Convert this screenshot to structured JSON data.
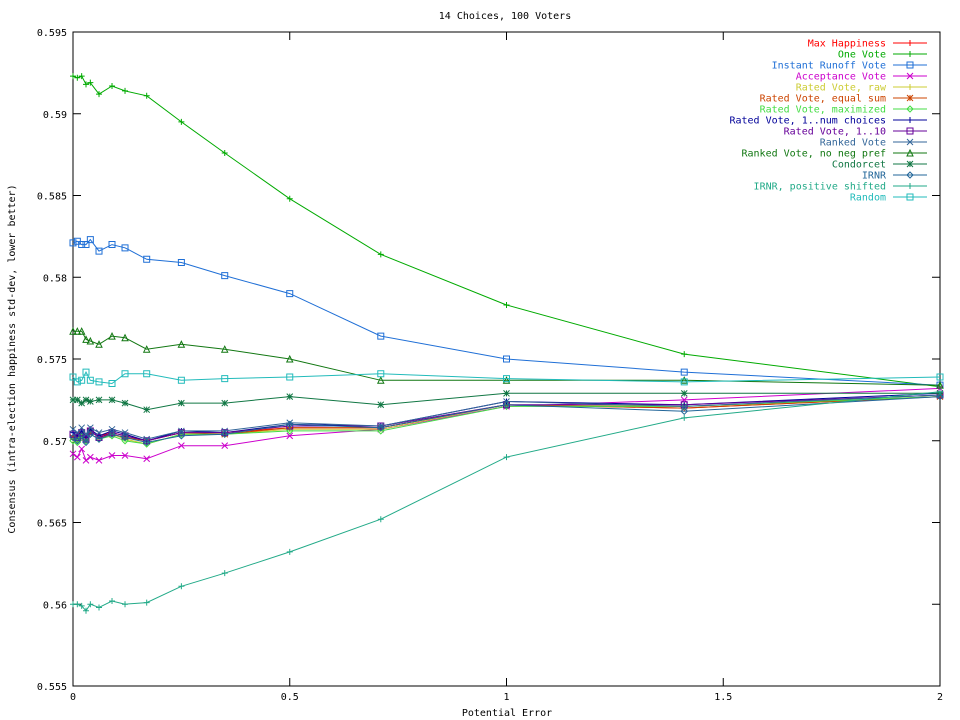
{
  "chart_data": {
    "type": "line",
    "title": "14 Choices, 100 Voters",
    "xlabel": "Potential Error",
    "ylabel": "Consensus (intra-election happiness std-dev, lower better)",
    "xlim": [
      0,
      2
    ],
    "ylim": [
      0.555,
      0.595
    ],
    "x_ticks": [
      "0",
      "0.5",
      "1",
      "1.5",
      "2"
    ],
    "y_ticks": [
      "0.555",
      "0.56",
      "0.565",
      "0.57",
      "0.575",
      "0.58",
      "0.585",
      "0.59",
      "0.595"
    ],
    "grid": false,
    "legend_position": "top-right",
    "x": [
      0,
      0.01,
      0.02,
      0.03,
      0.04,
      0.06,
      0.09,
      0.12,
      0.17,
      0.25,
      0.35,
      0.5,
      0.71,
      1.0,
      1.41,
      2.0
    ],
    "series": [
      {
        "name": "Max Happiness",
        "color": "#ff0000",
        "marker": "plus",
        "values": [
          0.5703,
          0.5702,
          0.5704,
          0.5701,
          0.5705,
          0.5703,
          0.5705,
          0.5703,
          0.57,
          0.5705,
          0.5705,
          0.5708,
          0.5708,
          0.5722,
          0.572,
          0.5727
        ]
      },
      {
        "name": "One Vote",
        "color": "#00aa00",
        "marker": "plus",
        "values": [
          0.5923,
          0.5922,
          0.5923,
          0.5918,
          0.5919,
          0.5912,
          0.5917,
          0.5914,
          0.5911,
          0.5895,
          0.5876,
          0.5848,
          0.5814,
          0.5783,
          0.5753,
          0.5733
        ]
      },
      {
        "name": "Instant Runoff Vote",
        "color": "#1f6fd6",
        "marker": "square",
        "values": [
          0.5821,
          0.5822,
          0.582,
          0.582,
          0.5823,
          0.5816,
          0.582,
          0.5818,
          0.5811,
          0.5809,
          0.5801,
          0.579,
          0.5764,
          0.575,
          0.5742,
          0.5734
        ]
      },
      {
        "name": "Acceptance Vote",
        "color": "#cc00cc",
        "marker": "cross",
        "values": [
          0.5692,
          0.569,
          0.5695,
          0.5688,
          0.569,
          0.5688,
          0.5691,
          0.5691,
          0.5689,
          0.5697,
          0.5697,
          0.5703,
          0.5707,
          0.5721,
          0.5725,
          0.5732
        ]
      },
      {
        "name": "Rated Vote, raw",
        "color": "#cccc33",
        "marker": "plus",
        "values": [
          0.5701,
          0.57,
          0.5703,
          0.5702,
          0.5706,
          0.5702,
          0.5704,
          0.5701,
          0.5698,
          0.5704,
          0.5704,
          0.5707,
          0.5707,
          0.5722,
          0.5721,
          0.5727
        ]
      },
      {
        "name": "Rated Vote, equal sum",
        "color": "#cc4400",
        "marker": "star",
        "values": [
          0.5702,
          0.5701,
          0.5704,
          0.5701,
          0.5706,
          0.5702,
          0.5704,
          0.5702,
          0.57,
          0.5705,
          0.5704,
          0.5708,
          0.5708,
          0.5722,
          0.572,
          0.5727
        ]
      },
      {
        "name": "Rated Vote, maximized",
        "color": "#44dd44",
        "marker": "diamond",
        "values": [
          0.57,
          0.5699,
          0.5702,
          0.57,
          0.5704,
          0.5701,
          0.5703,
          0.57,
          0.5698,
          0.5704,
          0.5704,
          0.5706,
          0.5706,
          0.5721,
          0.5721,
          0.5727
        ]
      },
      {
        "name": "Rated Vote, 1..num choices",
        "color": "#000099",
        "marker": "plus",
        "values": [
          0.5705,
          0.5703,
          0.5706,
          0.5702,
          0.5707,
          0.5703,
          0.5706,
          0.5704,
          0.57,
          0.5706,
          0.5705,
          0.571,
          0.5709,
          0.5724,
          0.5722,
          0.5729
        ]
      },
      {
        "name": "Rated Vote, 1..10",
        "color": "#660099",
        "marker": "square",
        "values": [
          0.5704,
          0.5702,
          0.5705,
          0.5701,
          0.5706,
          0.5702,
          0.5705,
          0.5703,
          0.57,
          0.5705,
          0.5705,
          0.5709,
          0.5709,
          0.5722,
          0.5722,
          0.5728
        ]
      },
      {
        "name": "Ranked Vote",
        "color": "#336699",
        "marker": "cross",
        "values": [
          0.5707,
          0.5705,
          0.5708,
          0.5704,
          0.5708,
          0.5705,
          0.5707,
          0.5705,
          0.5701,
          0.5706,
          0.5706,
          0.5711,
          0.5709,
          0.5724,
          0.5721,
          0.5728
        ]
      },
      {
        "name": "Ranked Vote, no neg pref",
        "color": "#117711",
        "marker": "triangle",
        "values": [
          0.5767,
          0.5767,
          0.5767,
          0.5762,
          0.5761,
          0.5759,
          0.5764,
          0.5763,
          0.5756,
          0.5759,
          0.5756,
          0.575,
          0.5737,
          0.5737,
          0.5737,
          0.5734
        ]
      },
      {
        "name": "Condorcet",
        "color": "#117744",
        "marker": "star",
        "values": [
          0.5725,
          0.5725,
          0.5723,
          0.5725,
          0.5724,
          0.5725,
          0.5725,
          0.5723,
          0.5719,
          0.5723,
          0.5723,
          0.5727,
          0.5722,
          0.5729,
          0.5729,
          0.5729
        ]
      },
      {
        "name": "IRNR",
        "color": "#226699",
        "marker": "diamond",
        "values": [
          0.5702,
          0.57,
          0.5703,
          0.5699,
          0.5704,
          0.5701,
          0.5704,
          0.5702,
          0.5699,
          0.5703,
          0.5704,
          0.571,
          0.5708,
          0.5722,
          0.5718,
          0.5727
        ]
      },
      {
        "name": "IRNR, positive shifted",
        "color": "#22aa88",
        "marker": "plus",
        "values": [
          0.56,
          0.56,
          0.5599,
          0.5596,
          0.56,
          0.5598,
          0.5602,
          0.56,
          0.5601,
          0.5611,
          0.5619,
          0.5632,
          0.5652,
          0.569,
          0.5714,
          0.573
        ]
      },
      {
        "name": "Random",
        "color": "#22bbbb",
        "marker": "square",
        "values": [
          0.5739,
          0.5736,
          0.5737,
          0.5742,
          0.5737,
          0.5736,
          0.5735,
          0.5741,
          0.5741,
          0.5737,
          0.5738,
          0.5739,
          0.5741,
          0.5738,
          0.5736,
          0.5739
        ]
      }
    ]
  }
}
